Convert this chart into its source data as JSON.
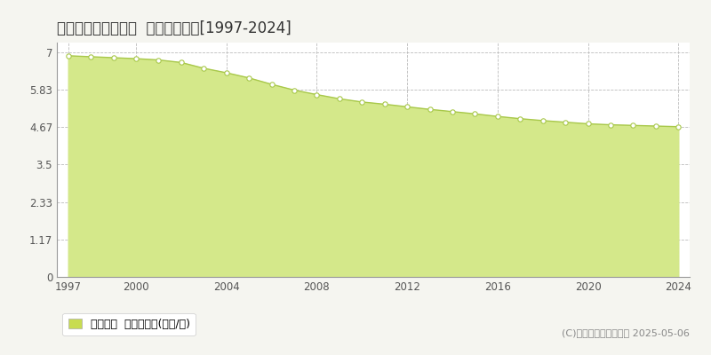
{
  "title": "員弁郡東員町北大社  基準地価推移[1997-2024]",
  "years": [
    1997,
    1998,
    1999,
    2000,
    2001,
    2002,
    2003,
    2004,
    2005,
    2006,
    2007,
    2008,
    2009,
    2010,
    2011,
    2012,
    2013,
    2014,
    2015,
    2016,
    2017,
    2018,
    2019,
    2020,
    2021,
    2022,
    2023,
    2024
  ],
  "values": [
    6.89,
    6.86,
    6.83,
    6.8,
    6.76,
    6.68,
    6.5,
    6.36,
    6.2,
    6.0,
    5.82,
    5.68,
    5.55,
    5.45,
    5.38,
    5.3,
    5.22,
    5.15,
    5.08,
    5.0,
    4.93,
    4.87,
    4.82,
    4.77,
    4.74,
    4.72,
    4.7,
    4.68
  ],
  "line_color": "#a8c84a",
  "fill_color": "#d4e88a",
  "marker_facecolor": "#ffffff",
  "marker_edgecolor": "#a8c84a",
  "bg_color": "#f5f5f0",
  "plot_bg_color": "#ffffff",
  "grid_color": "#bbbbbb",
  "yticks": [
    0,
    1.17,
    2.33,
    3.5,
    4.67,
    5.83,
    7
  ],
  "ytick_labels": [
    "0",
    "1.17",
    "2.33",
    "3.5",
    "4.67",
    "5.83",
    "7"
  ],
  "xticks": [
    1997,
    2000,
    2004,
    2008,
    2012,
    2016,
    2020,
    2024
  ],
  "xlim_min": 1996.5,
  "xlim_max": 2024.5,
  "ylim_min": 0,
  "ylim_max": 7.3,
  "legend_label": "基準地価  平均坪単価(万円/坪)",
  "copyright_text": "(C)土地価格ドットコム 2025-05-06",
  "title_fontsize": 12,
  "tick_fontsize": 8.5,
  "legend_fontsize": 9,
  "copyright_fontsize": 8,
  "legend_square_color": "#c8dc50"
}
